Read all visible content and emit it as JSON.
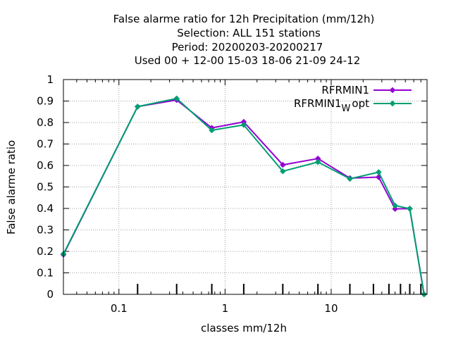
{
  "chart_data": {
    "type": "line",
    "title_lines": [
      "False alarme ratio  for 12h Precipitation (mm/12h)",
      "Selection: ALL    151 stations",
      "Period: 20200203-20200217",
      "Used  00 + 12-00 15-03 18-06 21-09 24-12"
    ],
    "xlabel": "classes mm/12h",
    "ylabel": "False alarme ratio",
    "xscale": "log",
    "xlim": [
      0.03,
      80
    ],
    "ylim": [
      0,
      1
    ],
    "x_ticks": [
      {
        "value": 0.1,
        "label": "0.1"
      },
      {
        "value": 1,
        "label": "1"
      },
      {
        "value": 10,
        "label": "10"
      }
    ],
    "y_ticks": [
      {
        "value": 0,
        "label": "0"
      },
      {
        "value": 0.1,
        "label": "0.1"
      },
      {
        "value": 0.2,
        "label": "0.2"
      },
      {
        "value": 0.3,
        "label": "0.3"
      },
      {
        "value": 0.4,
        "label": "0.4"
      },
      {
        "value": 0.5,
        "label": "0.5"
      },
      {
        "value": 0.6,
        "label": "0.6"
      },
      {
        "value": 0.7,
        "label": "0.7"
      },
      {
        "value": 0.8,
        "label": "0.8"
      },
      {
        "value": 0.9,
        "label": "0.9"
      },
      {
        "value": 1,
        "label": "1"
      }
    ],
    "minor_x_ticks": [
      0.04,
      0.05,
      0.06,
      0.07,
      0.08,
      0.09,
      0.2,
      0.3,
      0.4,
      0.5,
      0.6,
      0.7,
      0.8,
      0.9,
      2,
      3,
      4,
      5,
      6,
      7,
      8,
      9,
      20,
      30,
      40,
      50,
      60,
      70
    ],
    "class_ticks": [
      0.15,
      0.35,
      0.75,
      1.5,
      3.5,
      7.5,
      15,
      25,
      35,
      45,
      55,
      70
    ],
    "grid": true,
    "legend_position": "top-right",
    "series": [
      {
        "name": "RFRMIN1",
        "legend_text": "RFRMIN1",
        "color": "#9400d3",
        "x": [
          0.03,
          0.15,
          0.35,
          0.75,
          1.5,
          3.5,
          7.5,
          15,
          28,
          40,
          55,
          75
        ],
        "y": [
          0.185,
          0.874,
          0.905,
          0.775,
          0.803,
          0.603,
          0.632,
          0.541,
          0.546,
          0.398,
          0.399,
          0.0
        ]
      },
      {
        "name": "RFRMIN1_W opt",
        "legend_text": "RFRMIN1",
        "legend_sub": "W",
        "legend_suffix": "opt",
        "color": "#009e73",
        "x": [
          0.03,
          0.15,
          0.35,
          0.75,
          1.5,
          3.5,
          7.5,
          15,
          28,
          40,
          55,
          75
        ],
        "y": [
          0.188,
          0.874,
          0.912,
          0.764,
          0.789,
          0.573,
          0.616,
          0.538,
          0.569,
          0.413,
          0.399,
          0.0
        ]
      }
    ]
  }
}
